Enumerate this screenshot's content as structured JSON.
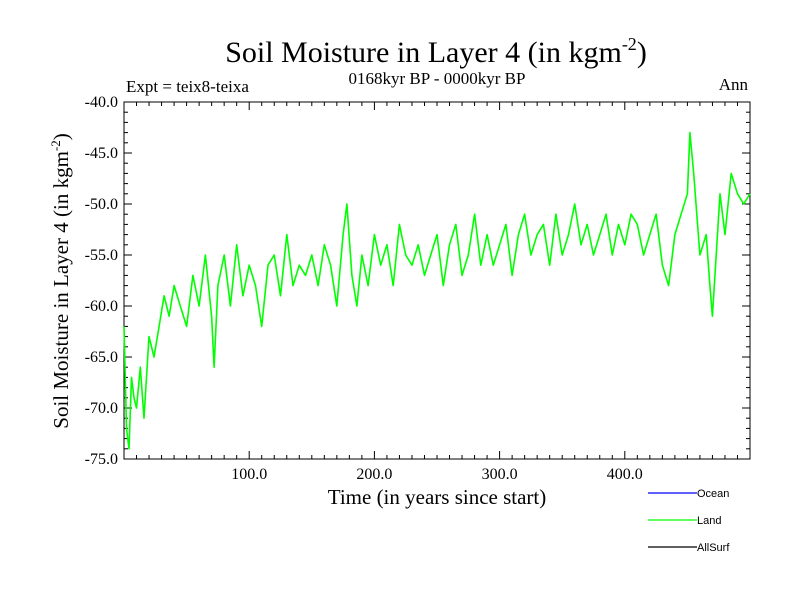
{
  "chart_data": {
    "type": "line",
    "title": "Soil Moisture in Layer 4 (in kgm",
    "title_sup": "-2",
    "title_close": ")",
    "subtitle": "0168kyr BP - 0000kyr BP",
    "expt_label": "Expt = teix8-teixa",
    "season_label": "Ann",
    "xlabel": "Time (in years since start)",
    "ylabel": "Soil Moisture in Layer 4 (in kgm",
    "ylabel_sup": "-2",
    "ylabel_close": ")",
    "xlim": [
      0,
      500
    ],
    "ylim": [
      -75,
      -40
    ],
    "x_ticks": [
      100,
      200,
      300,
      400
    ],
    "x_tick_labels": [
      "100.0",
      "200.0",
      "300.0",
      "400.0"
    ],
    "y_ticks": [
      -40,
      -45,
      -50,
      -55,
      -60,
      -65,
      -70,
      -75
    ],
    "y_tick_labels": [
      "-40.0",
      "-45.0",
      "-50.0",
      "-55.0",
      "-60.0",
      "-65.0",
      "-70.0",
      "-75.0"
    ],
    "grid": false,
    "legend_position": "bottom-right",
    "legend": [
      {
        "name": "Ocean",
        "color": "#0000ff"
      },
      {
        "name": "Land",
        "color": "#00ff00"
      },
      {
        "name": "AllSurf",
        "color": "#000000"
      }
    ],
    "series": [
      {
        "name": "Land",
        "color": "#00ff00",
        "x": [
          0,
          2,
          4,
          6,
          8,
          10,
          13,
          16,
          20,
          24,
          28,
          32,
          36,
          40,
          45,
          50,
          55,
          60,
          65,
          70,
          72,
          75,
          80,
          85,
          90,
          95,
          100,
          105,
          110,
          115,
          120,
          125,
          130,
          135,
          140,
          145,
          150,
          155,
          160,
          165,
          170,
          175,
          178,
          182,
          186,
          190,
          195,
          200,
          205,
          210,
          215,
          220,
          225,
          230,
          235,
          240,
          245,
          250,
          255,
          260,
          265,
          270,
          275,
          280,
          285,
          290,
          295,
          300,
          305,
          310,
          315,
          320,
          325,
          330,
          335,
          340,
          345,
          350,
          355,
          360,
          365,
          370,
          375,
          380,
          385,
          390,
          395,
          400,
          405,
          410,
          415,
          420,
          425,
          430,
          435,
          440,
          445,
          450,
          452,
          455,
          460,
          465,
          468,
          470,
          473,
          476,
          480,
          485,
          490,
          495,
          500
        ],
        "values": [
          -62,
          -72,
          -74,
          -67,
          -69,
          -70,
          -66,
          -71,
          -63,
          -65,
          -62,
          -59,
          -61,
          -58,
          -60,
          -62,
          -57,
          -60,
          -55,
          -61,
          -66,
          -58,
          -55,
          -60,
          -54,
          -59,
          -56,
          -58,
          -62,
          -56,
          -55,
          -59,
          -53,
          -58,
          -56,
          -57,
          -55,
          -58,
          -54,
          -56,
          -60,
          -53,
          -50,
          -57,
          -60,
          -55,
          -58,
          -53,
          -56,
          -54,
          -58,
          -52,
          -55,
          -56,
          -54,
          -57,
          -55,
          -53,
          -58,
          -54,
          -52,
          -57,
          -55,
          -51,
          -56,
          -53,
          -56,
          -54,
          -52,
          -57,
          -53,
          -51,
          -55,
          -53,
          -52,
          -56,
          -51,
          -55,
          -53,
          -50,
          -54,
          -52,
          -55,
          -53,
          -51,
          -55,
          -52,
          -54,
          -51,
          -52,
          -55,
          -53,
          -51,
          -56,
          -58,
          -53,
          -51,
          -49,
          -43,
          -47,
          -55,
          -53,
          -58,
          -61,
          -55,
          -49,
          -53,
          -47,
          -49,
          -50,
          -49
        ]
      }
    ]
  }
}
